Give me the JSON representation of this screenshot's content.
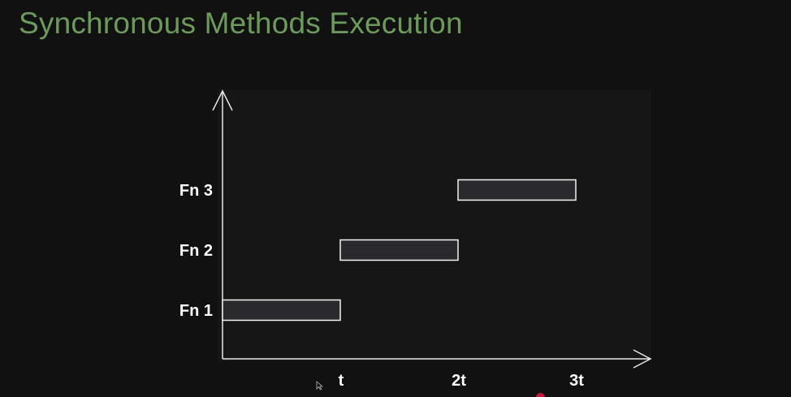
{
  "title": "Synchronous Methods Execution",
  "colors": {
    "background": "#111111",
    "title": "#6c9a5b",
    "axis": "#e8e8e8",
    "bar_fill": "#2a2a2e",
    "bar_stroke": "#f2f2f2",
    "label": "#ffffff",
    "marker": "#c21a3a"
  },
  "chart_data": {
    "type": "bar",
    "orientation": "horizontal",
    "categories": [
      "Fn 1",
      "Fn 2",
      "Fn 3"
    ],
    "x_ticks": [
      "t",
      "2t",
      "3t"
    ],
    "segments": [
      {
        "category": "Fn 1",
        "start": 0,
        "end": 1
      },
      {
        "category": "Fn 2",
        "start": 1,
        "end": 2
      },
      {
        "category": "Fn 3",
        "start": 2,
        "end": 3
      }
    ],
    "xlim": [
      0,
      3.6
    ],
    "grid": false,
    "xlabel": "",
    "ylabel": ""
  }
}
